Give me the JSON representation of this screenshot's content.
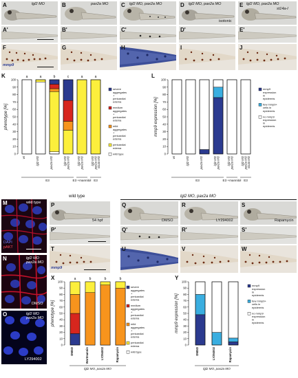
{
  "panels": {
    "A": {
      "letter": "A",
      "label": "lgl2 MO"
    },
    "B": {
      "letter": "B",
      "label": "pax2a MO"
    },
    "C": {
      "letter": "C",
      "label": "lgl2 MO, pax2a MO"
    },
    "D": {
      "letter": "D",
      "label": "lgl2 MO, pax2a MO",
      "sublabel": "isotonic"
    },
    "E": {
      "letter": "E",
      "label": "lgl2 MO, pax2a MO",
      "sublabel": "st14a-I"
    },
    "A2": {
      "letter": "A'"
    },
    "B2": {
      "letter": "B'"
    },
    "C2": {
      "letter": "C'"
    },
    "D2": {
      "letter": "D'"
    },
    "E2": {
      "letter": "E'"
    },
    "F": {
      "letter": "F",
      "label": "mmp9"
    },
    "G": {
      "letter": "G"
    },
    "H": {
      "letter": "H"
    },
    "I": {
      "letter": "I"
    },
    "J": {
      "letter": "J"
    },
    "M": {
      "letter": "M",
      "label": "wild type",
      "stain1": "DAPI",
      "stain2": "pAKT"
    },
    "N": {
      "letter": "N",
      "label1": "lgl2 MO",
      "label2": "pax2a MO",
      "sublabel": "DMSO"
    },
    "O": {
      "letter": "O",
      "label1": "lgl2 MO",
      "label2": "pax2a MO",
      "sublabel": "LY294002"
    },
    "P": {
      "letter": "P",
      "label": "wild type",
      "sublabel": "54 hpf"
    },
    "QS_header": "lgl2 MO, pax2a MO",
    "Q": {
      "letter": "Q",
      "sublabel": "DMSO"
    },
    "R": {
      "letter": "R",
      "sublabel": "LY294002"
    },
    "S": {
      "letter": "S",
      "sublabel": "Rapamycin"
    },
    "P2": {
      "letter": "P'"
    },
    "Q2": {
      "letter": "Q'"
    },
    "R2": {
      "letter": "R'"
    },
    "S2": {
      "letter": "S'"
    },
    "T": {
      "letter": "T",
      "label": "mmp9"
    },
    "U": {
      "letter": "U"
    },
    "V": {
      "letter": "V"
    },
    "W": {
      "letter": "W"
    }
  },
  "chart_data": [
    {
      "id": "K",
      "letter": "K",
      "type": "bar",
      "stacked": true,
      "ylabel": "phenotype [%]",
      "ylim": [
        0,
        100
      ],
      "yticks": [
        0,
        10,
        20,
        30,
        40,
        50,
        60,
        70,
        80,
        90,
        100
      ],
      "categories": [
        "wt",
        "lgl2 MO",
        "pax2a MO",
        "lgl2 MO pax2a MO",
        "lgl2 MO pax2a MO",
        "lgl2 MO pax2a MO st14a MO"
      ],
      "group_labels": [
        {
          "text": "E3",
          "from": 0,
          "to": 3
        },
        {
          "text": "E3 +mannitol",
          "from": 4,
          "to": 4
        },
        {
          "text": "E3",
          "from": 5,
          "to": 5
        }
      ],
      "significance": [
        "a",
        "a",
        "b",
        "c",
        "a",
        "a"
      ],
      "series": [
        {
          "name": "wild type",
          "color": "#ffffff",
          "values": [
            100,
            97,
            3,
            0,
            0,
            0
          ]
        },
        {
          "name": "pericardial edema",
          "color": "#fcef3c",
          "values": [
            0,
            3,
            81,
            32,
            100,
            100
          ]
        },
        {
          "name": "mild aggregates + pericardial edema",
          "color": "#f7941d",
          "values": [
            0,
            0,
            4,
            12,
            0,
            0
          ]
        },
        {
          "name": "medium aggregates + pericardial edema",
          "color": "#d7261e",
          "values": [
            0,
            0,
            6,
            28,
            0,
            0
          ]
        },
        {
          "name": "severe aggregates + pericardial edema",
          "color": "#2b3a8f",
          "values": [
            0,
            0,
            6,
            28,
            0,
            0
          ]
        }
      ]
    },
    {
      "id": "L",
      "letter": "L",
      "type": "bar",
      "stacked": true,
      "ylabel": "mmp9 expression [%]",
      "ylim": [
        0,
        100
      ],
      "yticks": [
        0,
        10,
        20,
        30,
        40,
        50,
        60,
        70,
        80,
        90,
        100
      ],
      "categories": [
        "wt",
        "lgl2 MO",
        "pax2a MO",
        "lgl2 MO pax2a MO",
        "lgl2 MO pax2a MO",
        "lgl2 MO pax2a MO st14a MO"
      ],
      "group_labels": [
        {
          "text": "E3",
          "from": 0,
          "to": 3
        },
        {
          "text": "E3 +mannitol",
          "from": 4,
          "to": 4
        },
        {
          "text": "E3",
          "from": 5,
          "to": 5
        }
      ],
      "series": [
        {
          "name": "mmp9 expression in epidermis",
          "color": "#2b3a8f",
          "values": [
            0,
            0,
            6,
            76,
            0,
            0
          ]
        },
        {
          "name": "few mmp9+ cells in epidermis",
          "color": "#3aaee0",
          "values": [
            0,
            0,
            0,
            14,
            0,
            0
          ]
        },
        {
          "name": "no mmp9 expression in epidermis",
          "color": "#ffffff",
          "values": [
            100,
            100,
            94,
            10,
            100,
            100
          ]
        }
      ]
    },
    {
      "id": "X",
      "letter": "X",
      "type": "bar",
      "stacked": true,
      "ylabel": "phenotype [%]",
      "ylim": [
        0,
        100
      ],
      "yticks": [
        0,
        10,
        20,
        30,
        40,
        50,
        60,
        70,
        80,
        90,
        100
      ],
      "categories": [
        "DMSO",
        "Wortmannin",
        "LY294002",
        "Rapamycin"
      ],
      "xlabel": "lgl2 MO, pax2a MO",
      "significance": [
        "a",
        "b",
        "b",
        "b"
      ],
      "series": [
        {
          "name": "wild type",
          "color": "#ffffff",
          "values": [
            0,
            0,
            0,
            0
          ]
        },
        {
          "name": "pericardial edema",
          "color": "#fcef3c",
          "values": [
            0,
            0,
            5,
            10
          ]
        },
        {
          "name": "mild aggregates + pericardial edema",
          "color": "#f7941d",
          "values": [
            30,
            17,
            0,
            0
          ]
        },
        {
          "name": "medium aggregates + pericardial edema",
          "color": "#d7261e",
          "values": [
            32,
            0,
            0,
            0
          ]
        },
        {
          "name": "severe aggregates + pericardial edema",
          "color": "#2b3a8f",
          "values": [
            18,
            0,
            0,
            0
          ]
        }
      ],
      "pericardial_top": [
        70,
        83,
        95,
        90
      ]
    },
    {
      "id": "Y",
      "letter": "Y",
      "type": "bar",
      "stacked": true,
      "ylabel": "mmp9 expression [%]",
      "ylim": [
        0,
        100
      ],
      "yticks": [
        0,
        10,
        20,
        30,
        40,
        50,
        60,
        70,
        80,
        90,
        100
      ],
      "categories": [
        "DMSO",
        "LY294002",
        "Rapamycin"
      ],
      "xlabel": "lgl2 MO, pax2a MO",
      "series": [
        {
          "name": "mmp9 expression in epidermis",
          "color": "#2b3a8f",
          "values": [
            48,
            0,
            5
          ]
        },
        {
          "name": "few mmp9+ cells in epidermis",
          "color": "#3aaee0",
          "values": [
            32,
            20,
            6
          ]
        },
        {
          "name": "no mmp9 expression in epidermis",
          "color": "#ffffff",
          "values": [
            20,
            80,
            89
          ]
        }
      ]
    }
  ]
}
